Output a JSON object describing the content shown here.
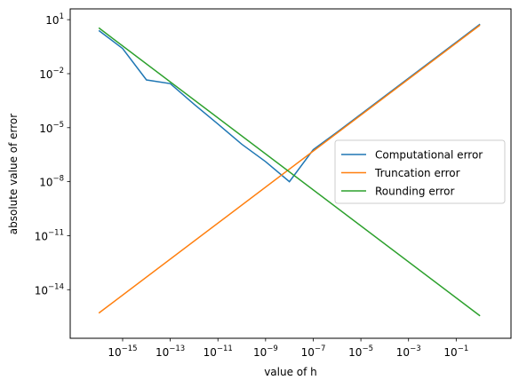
{
  "chart_data": {
    "type": "line",
    "title": "",
    "xlabel": "value of h",
    "ylabel": "absolute value of error",
    "xscale": "log",
    "yscale": "log",
    "xlim_exp": [
      -17.2,
      1.3
    ],
    "ylim_exp": [
      -16.7,
      1.6
    ],
    "grid": false,
    "legend_position": "center-right",
    "x_ticks": [
      {
        "mantissa": "10",
        "exp": "−15",
        "value": 1e-15
      },
      {
        "mantissa": "10",
        "exp": "−13",
        "value": 1e-13
      },
      {
        "mantissa": "10",
        "exp": "−11",
        "value": 1e-11
      },
      {
        "mantissa": "10",
        "exp": "−9",
        "value": 1e-09
      },
      {
        "mantissa": "10",
        "exp": "−7",
        "value": 1e-07
      },
      {
        "mantissa": "10",
        "exp": "−5",
        "value": 1e-05
      },
      {
        "mantissa": "10",
        "exp": "−3",
        "value": 0.001
      },
      {
        "mantissa": "10",
        "exp": "−1",
        "value": 0.1
      }
    ],
    "y_ticks": [
      {
        "mantissa": "10",
        "exp": "1",
        "value": 10
      },
      {
        "mantissa": "10",
        "exp": "−2",
        "value": 0.01
      },
      {
        "mantissa": "10",
        "exp": "−5",
        "value": 1e-05
      },
      {
        "mantissa": "10",
        "exp": "−8",
        "value": 1e-08
      },
      {
        "mantissa": "10",
        "exp": "−11",
        "value": 1e-11
      },
      {
        "mantissa": "10",
        "exp": "−14",
        "value": 1e-14
      }
    ],
    "series": [
      {
        "name": "Computational error",
        "color": "#1f77b4",
        "x": [
          1e-16,
          1e-15,
          1e-14,
          1e-13,
          1e-12,
          1e-11,
          1e-10,
          1e-09,
          1e-08,
          1e-07,
          1e-06,
          1e-05,
          0.0001,
          0.001,
          0.01,
          0.1,
          1
        ],
        "y": [
          2.5,
          0.25,
          0.0045,
          0.0028,
          0.0002,
          1.6e-05,
          1.2e-06,
          1.3e-07,
          1e-08,
          6e-07,
          5.6e-06,
          5.6e-05,
          0.00056,
          0.0056,
          0.056,
          0.56,
          5.6
        ]
      },
      {
        "name": "Truncation error",
        "color": "#ff7f0e",
        "x": [
          1e-16,
          1
        ],
        "y": [
          5e-16,
          5
        ]
      },
      {
        "name": "Rounding error",
        "color": "#2ca02c",
        "x": [
          1e-16,
          1
        ],
        "y": [
          3.5,
          3.5e-16
        ]
      }
    ]
  }
}
